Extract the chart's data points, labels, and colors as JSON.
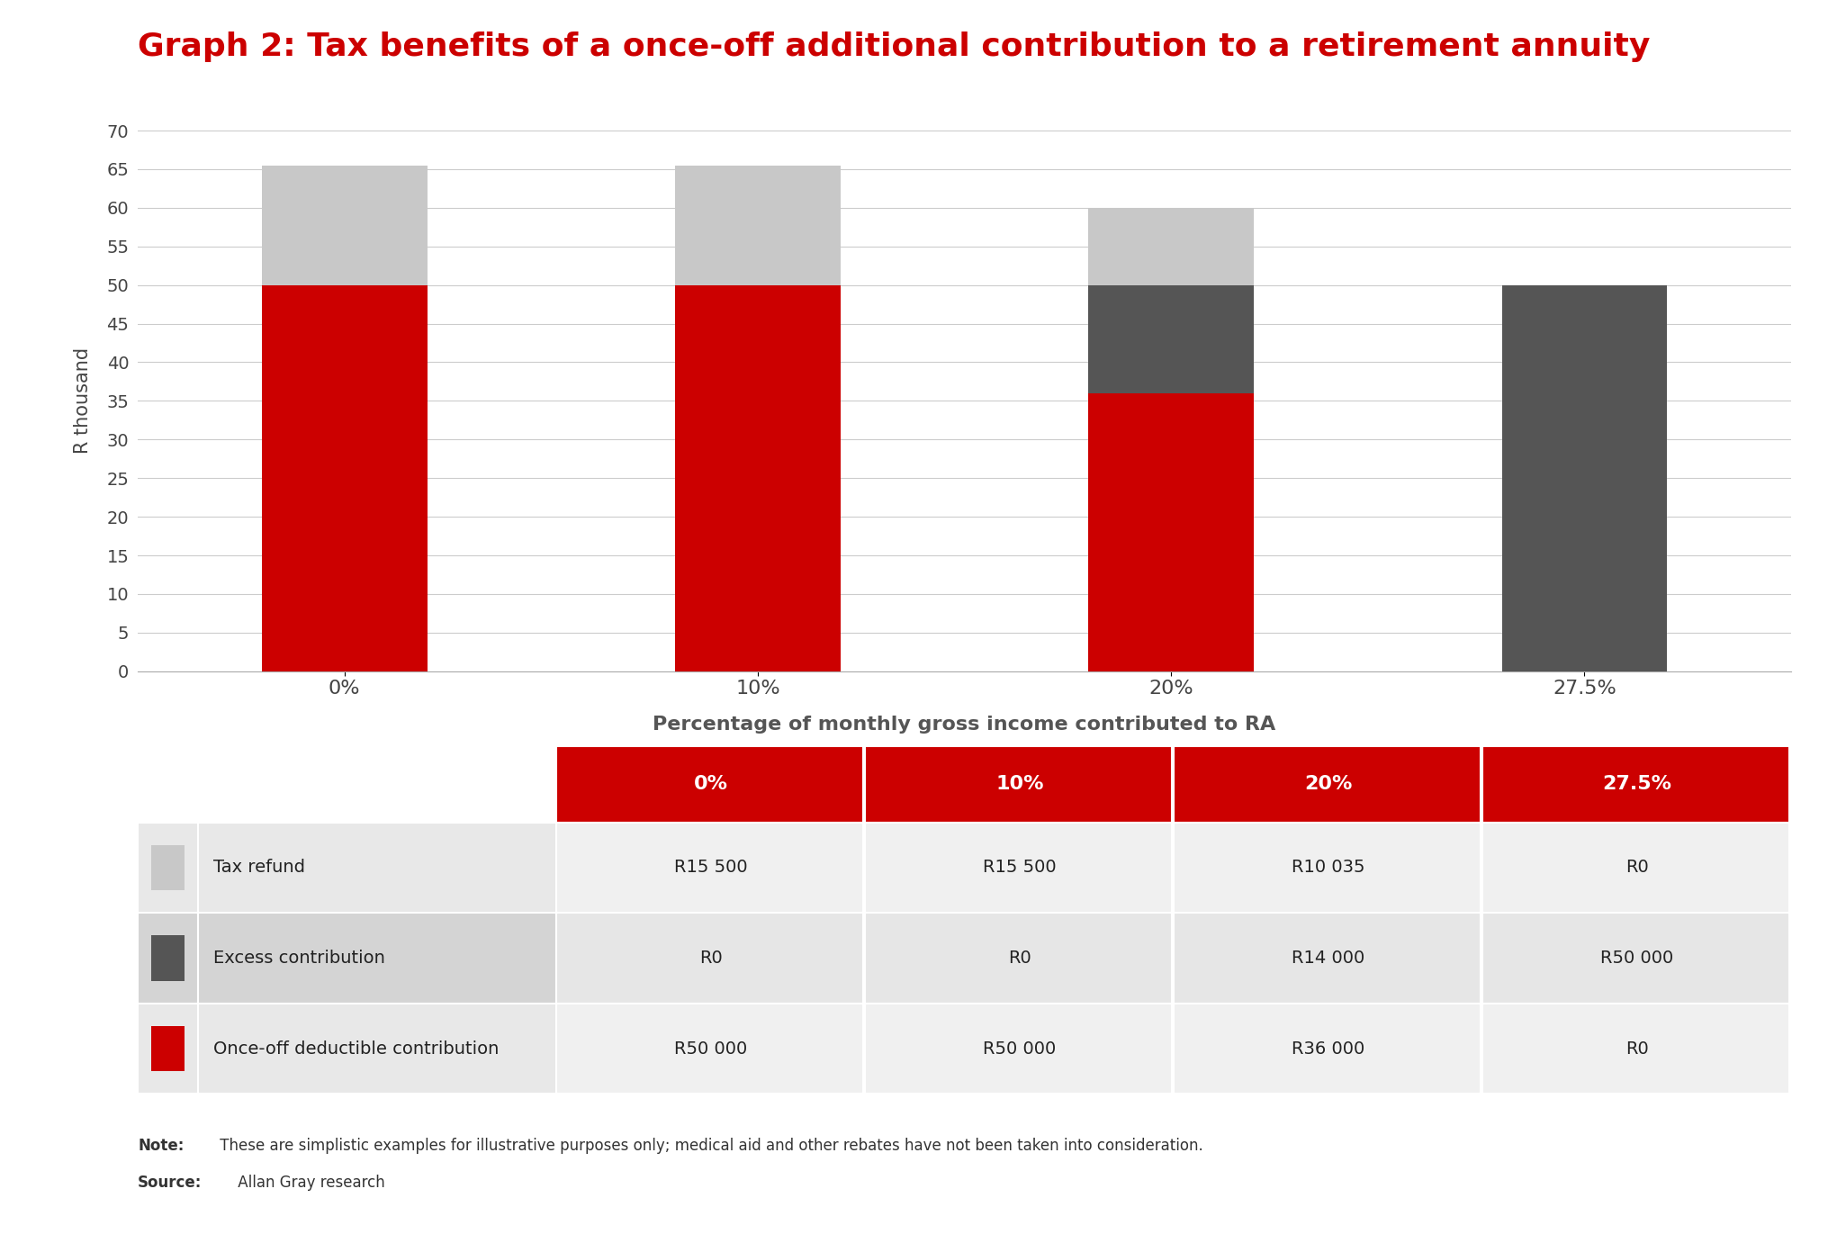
{
  "title": "Graph 2: Tax benefits of a once-off additional contribution to a retirement annuity",
  "title_color": "#cc0000",
  "title_fontsize": 26,
  "categories": [
    "0%",
    "10%",
    "20%",
    "27.5%"
  ],
  "red_values": [
    50,
    50,
    36,
    0
  ],
  "dark_values": [
    0,
    0,
    14,
    50
  ],
  "light_values": [
    15.5,
    15.5,
    10.035,
    0
  ],
  "red_color": "#cc0000",
  "dark_color": "#555555",
  "light_color": "#c8c8c8",
  "ylabel": "R thousand",
  "xlabel": "Percentage of monthly gross income contributed to RA",
  "ylim": [
    0,
    70
  ],
  "yticks": [
    0,
    5,
    10,
    15,
    20,
    25,
    30,
    35,
    40,
    45,
    50,
    55,
    60,
    65,
    70
  ],
  "background_color": "#ffffff",
  "grid_color": "#cccccc",
  "table_header_color": "#cc0000",
  "table_header_text_color": "#ffffff",
  "table_row_colors": [
    "#e8e8e8",
    "#d4d4d4",
    "#e8e8e8"
  ],
  "table_data_colors": [
    "#f0f0f0",
    "#e6e6e6",
    "#f0f0f0"
  ],
  "table_columns": [
    "0%",
    "10%",
    "20%",
    "27.5%"
  ],
  "table_row_labels": [
    "Tax refund",
    "Excess contribution",
    "Once-off deductible contribution"
  ],
  "table_data": [
    [
      "R15 500",
      "R15 500",
      "R10 035",
      "R0"
    ],
    [
      "R0",
      "R0",
      "R14 000",
      "R50 000"
    ],
    [
      "R50 000",
      "R50 000",
      "R36 000",
      "R0"
    ]
  ],
  "note_bold": "Note:",
  "note_text": " These are simplistic examples for illustrative purposes only; medical aid and other rebates have not been taken into consideration.",
  "source_bold": "Source:",
  "source_text": " Allan Gray research",
  "bar_width": 0.4,
  "legend_colors": [
    "#c8c8c8",
    "#555555",
    "#cc0000"
  ]
}
